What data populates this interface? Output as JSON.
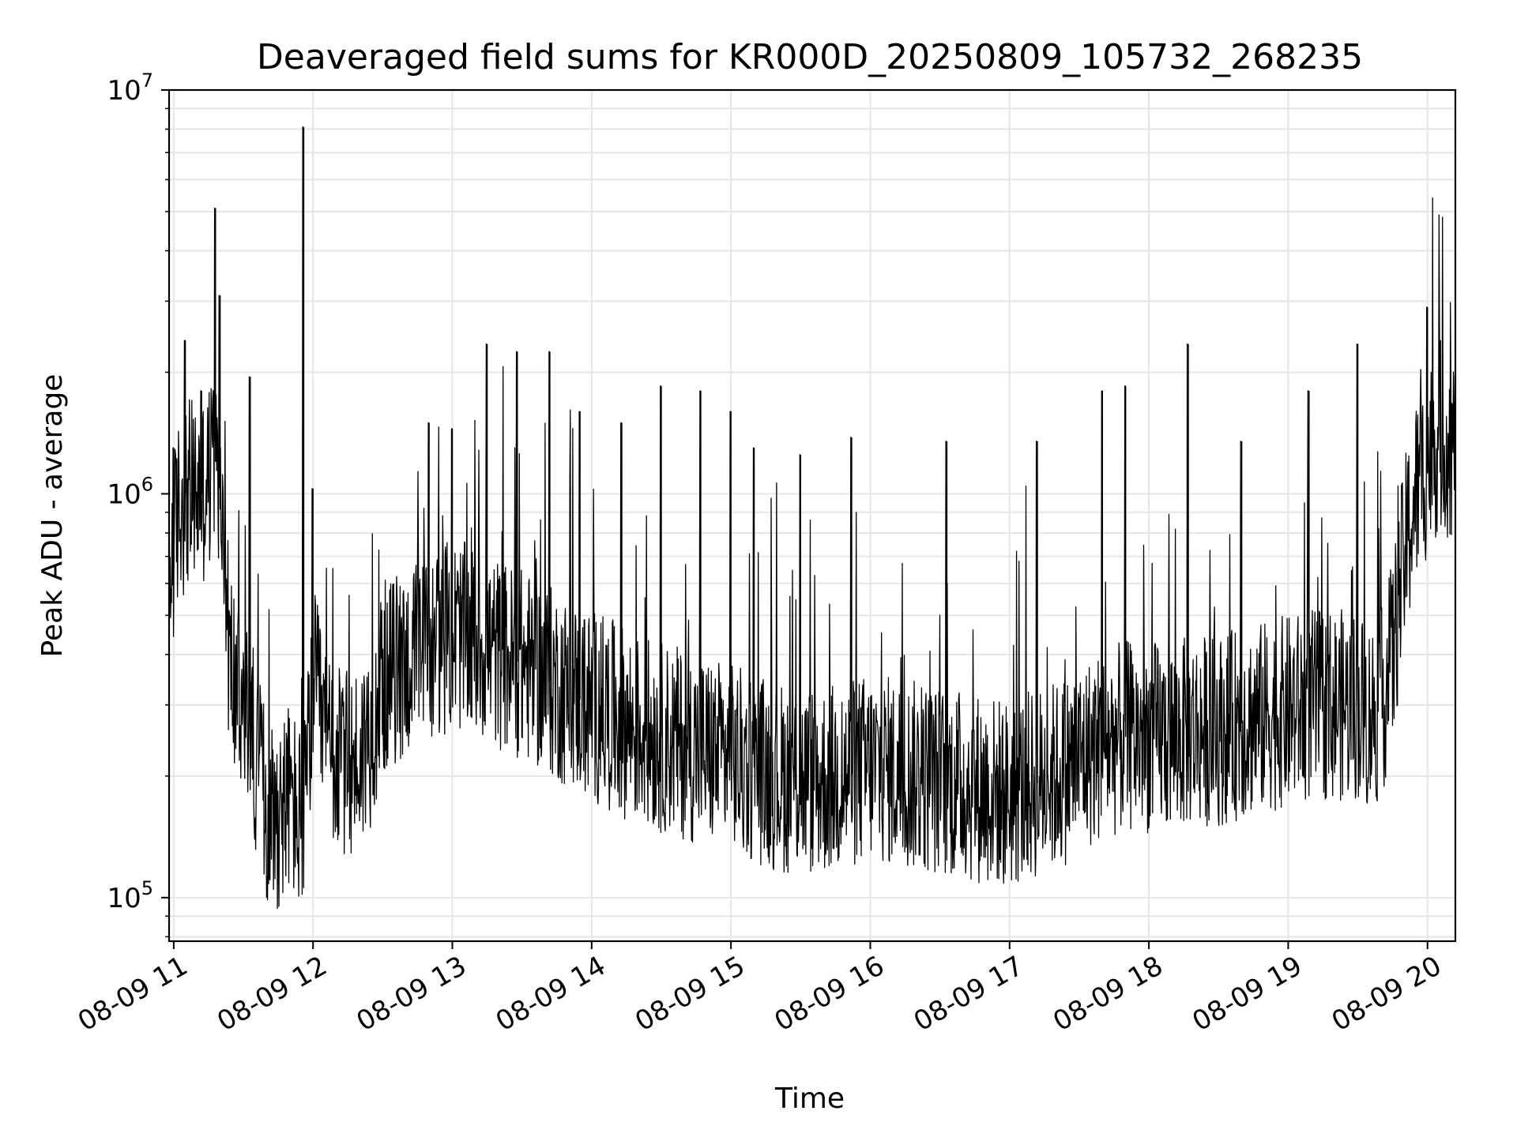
{
  "chart_data": {
    "type": "line",
    "title": "Deaveraged field sums for KR000D_20250809_105732_268235",
    "xlabel": "Time",
    "ylabel": "Peak ADU - average",
    "yscale": "log",
    "ylim": [
      78000,
      10000000
    ],
    "xlim": [
      "2025-08-09 10:58",
      "2025-08-09 20:12"
    ],
    "grid": true,
    "line_color": "#000000",
    "x_ticks": [
      {
        "time": "2025-08-09 11:00",
        "label": "08-09 11"
      },
      {
        "time": "2025-08-09 12:00",
        "label": "08-09 12"
      },
      {
        "time": "2025-08-09 13:00",
        "label": "08-09 13"
      },
      {
        "time": "2025-08-09 14:00",
        "label": "08-09 14"
      },
      {
        "time": "2025-08-09 15:00",
        "label": "08-09 15"
      },
      {
        "time": "2025-08-09 16:00",
        "label": "08-09 16"
      },
      {
        "time": "2025-08-09 17:00",
        "label": "08-09 17"
      },
      {
        "time": "2025-08-09 18:00",
        "label": "08-09 18"
      },
      {
        "time": "2025-08-09 19:00",
        "label": "08-09 19"
      },
      {
        "time": "2025-08-09 20:00",
        "label": "08-09 20"
      }
    ],
    "y_ticks": [
      {
        "value": 100000,
        "base": "10",
        "exp": "5"
      },
      {
        "value": 1000000,
        "base": "10",
        "exp": "6"
      },
      {
        "value": 10000000,
        "base": "10",
        "exp": "7"
      }
    ],
    "series": [
      {
        "x": [
          "2025-08-09 10:58",
          "2025-08-09 11:02",
          "2025-08-09 11:05",
          "2025-08-09 11:08",
          "2025-08-09 11:12",
          "2025-08-09 11:15",
          "2025-08-09 11:18",
          "2025-08-09 11:21",
          "2025-08-09 11:24",
          "2025-08-09 11:28",
          "2025-08-09 11:31",
          "2025-08-09 11:34",
          "2025-08-09 11:37",
          "2025-08-09 11:40",
          "2025-08-09 11:44",
          "2025-08-09 11:47",
          "2025-08-09 11:50",
          "2025-08-09 11:53",
          "2025-08-09 11:56",
          "2025-08-09 12:00",
          "2025-08-09 12:05",
          "2025-08-09 12:10",
          "2025-08-09 12:15",
          "2025-08-09 12:20",
          "2025-08-09 12:25",
          "2025-08-09 12:30",
          "2025-08-09 12:40",
          "2025-08-09 12:50",
          "2025-08-09 13:00",
          "2025-08-09 13:10",
          "2025-08-09 13:20",
          "2025-08-09 13:30",
          "2025-08-09 13:40",
          "2025-08-09 13:50",
          "2025-08-09 14:00",
          "2025-08-09 14:10",
          "2025-08-09 14:20",
          "2025-08-09 14:30",
          "2025-08-09 14:40",
          "2025-08-09 14:50",
          "2025-08-09 15:00",
          "2025-08-09 15:10",
          "2025-08-09 15:20",
          "2025-08-09 15:30",
          "2025-08-09 15:40",
          "2025-08-09 15:50",
          "2025-08-09 16:00",
          "2025-08-09 16:10",
          "2025-08-09 16:20",
          "2025-08-09 16:30",
          "2025-08-09 16:40",
          "2025-08-09 16:50",
          "2025-08-09 17:00",
          "2025-08-09 17:10",
          "2025-08-09 17:20",
          "2025-08-09 17:30",
          "2025-08-09 17:40",
          "2025-08-09 17:50",
          "2025-08-09 18:00",
          "2025-08-09 18:10",
          "2025-08-09 18:20",
          "2025-08-09 18:30",
          "2025-08-09 18:40",
          "2025-08-09 18:50",
          "2025-08-09 19:00",
          "2025-08-09 19:10",
          "2025-08-09 19:20",
          "2025-08-09 19:30",
          "2025-08-09 19:35",
          "2025-08-09 19:40",
          "2025-08-09 19:45",
          "2025-08-09 19:50",
          "2025-08-09 19:55",
          "2025-08-09 20:00",
          "2025-08-09 20:05",
          "2025-08-09 20:12"
        ],
        "y": [
          600000,
          900000,
          1000000,
          1000000,
          1000000,
          1100000,
          1200000,
          800000,
          400000,
          300000,
          280000,
          250000,
          200000,
          170000,
          160000,
          170000,
          180000,
          160000,
          150000,
          350000,
          250000,
          220000,
          210000,
          220000,
          260000,
          350000,
          380000,
          420000,
          450000,
          430000,
          400000,
          380000,
          350000,
          320000,
          300000,
          280000,
          260000,
          250000,
          240000,
          230000,
          220000,
          210000,
          200000,
          195000,
          195000,
          200000,
          210000,
          205000,
          200000,
          195000,
          190000,
          185000,
          180000,
          190000,
          200000,
          220000,
          240000,
          250000,
          250000,
          250000,
          260000,
          260000,
          270000,
          280000,
          290000,
          300000,
          300000,
          300000,
          280000,
          300000,
          400000,
          700000,
          1000000,
          1200000,
          1400000,
          1300000
        ]
      }
    ],
    "spikes": [
      {
        "time": "2025-08-09 11:00",
        "value": 1300000
      },
      {
        "time": "2025-08-09 11:05",
        "value": 2400000
      },
      {
        "time": "2025-08-09 11:12",
        "value": 1800000
      },
      {
        "time": "2025-08-09 11:18",
        "value": 5100000
      },
      {
        "time": "2025-08-09 11:20",
        "value": 3100000
      },
      {
        "time": "2025-08-09 11:33",
        "value": 1950000
      },
      {
        "time": "2025-08-09 11:56",
        "value": 8100000
      },
      {
        "time": "2025-08-09 12:00",
        "value": 1030000
      },
      {
        "time": "2025-08-09 12:50",
        "value": 1500000
      },
      {
        "time": "2025-08-09 13:00",
        "value": 1450000
      },
      {
        "time": "2025-08-09 13:15",
        "value": 2350000
      },
      {
        "time": "2025-08-09 13:28",
        "value": 2250000
      },
      {
        "time": "2025-08-09 13:42",
        "value": 2250000
      },
      {
        "time": "2025-08-09 13:55",
        "value": 1600000
      },
      {
        "time": "2025-08-09 14:13",
        "value": 1500000
      },
      {
        "time": "2025-08-09 14:30",
        "value": 1850000
      },
      {
        "time": "2025-08-09 14:47",
        "value": 1800000
      },
      {
        "time": "2025-08-09 15:00",
        "value": 1600000
      },
      {
        "time": "2025-08-09 15:10",
        "value": 1300000
      },
      {
        "time": "2025-08-09 15:30",
        "value": 1250000
      },
      {
        "time": "2025-08-09 15:52",
        "value": 1380000
      },
      {
        "time": "2025-08-09 16:33",
        "value": 1350000
      },
      {
        "time": "2025-08-09 17:12",
        "value": 1350000
      },
      {
        "time": "2025-08-09 17:40",
        "value": 1800000
      },
      {
        "time": "2025-08-09 17:50",
        "value": 1850000
      },
      {
        "time": "2025-08-09 18:17",
        "value": 2350000
      },
      {
        "time": "2025-08-09 18:40",
        "value": 1350000
      },
      {
        "time": "2025-08-09 19:09",
        "value": 1800000
      },
      {
        "time": "2025-08-09 19:30",
        "value": 2350000
      },
      {
        "time": "2025-08-09 20:00",
        "value": 2900000
      }
    ]
  }
}
